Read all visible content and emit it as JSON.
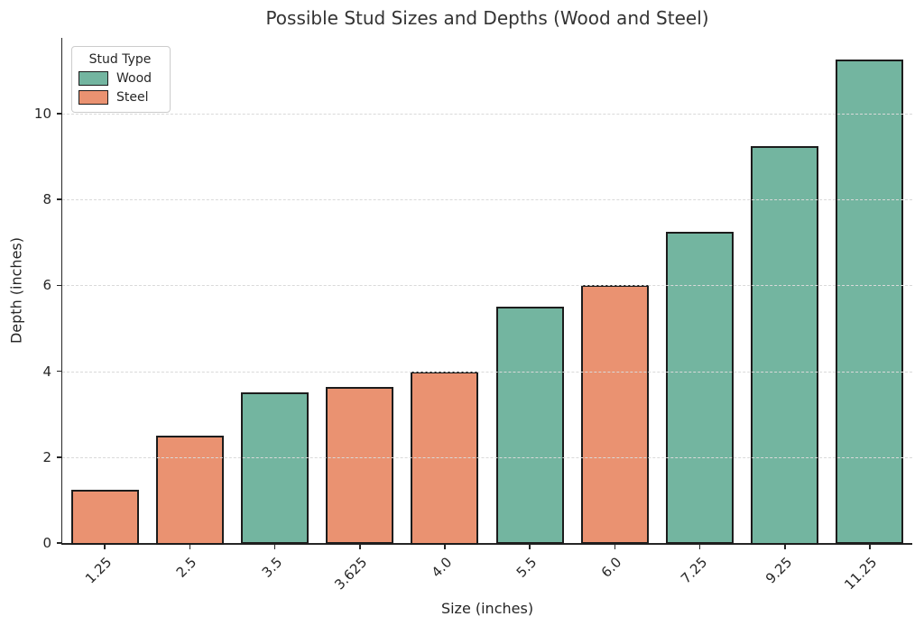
{
  "chart_data": {
    "type": "bar",
    "title": "Possible Stud Sizes and Depths (Wood and Steel)",
    "xlabel": "Size (inches)",
    "ylabel": "Depth (inches)",
    "categories": [
      "1.25",
      "2.5",
      "3.5",
      "3.625",
      "4.0",
      "5.5",
      "6.0",
      "7.25",
      "9.25",
      "11.25"
    ],
    "values": [
      1.25,
      2.5,
      3.5,
      3.625,
      4.0,
      5.5,
      6.0,
      7.25,
      9.25,
      11.25
    ],
    "bar_types": [
      "Steel",
      "Steel",
      "Wood",
      "Steel",
      "Steel",
      "Wood",
      "Steel",
      "Wood",
      "Wood",
      "Wood"
    ],
    "yticks": [
      0,
      2,
      4,
      6,
      8,
      10
    ],
    "ytick_labels": [
      "0",
      "2",
      "4",
      "6",
      "8",
      "10"
    ],
    "ylim": [
      0,
      11.76
    ],
    "grid": "horizontal-dashed",
    "legend": {
      "position": "upper-left",
      "title": "Stud Type",
      "entries": [
        {
          "label": "Wood",
          "color": "#73b5a0"
        },
        {
          "label": "Steel",
          "color": "#ea9271"
        }
      ]
    },
    "colors": {
      "Wood": "#73b5a0",
      "Steel": "#ea9271",
      "bar_edge": "#1c1c1c",
      "grid": "#d9d9d9",
      "axis": "#262626",
      "text": "#262626"
    }
  }
}
